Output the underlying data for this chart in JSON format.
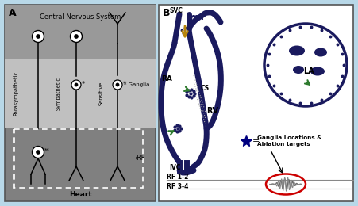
{
  "bg_color": "#b8d8e8",
  "navy": "#1a1a5e",
  "green_arrow": "#2d7a2d",
  "orange_arrow": "#b8860b",
  "red_ellipse": "#cc0000",
  "gray_dark": "#808080",
  "gray_mid": "#a8a8a8",
  "gray_light": "#c8c8c8",
  "title_a": "A",
  "title_b": "B",
  "cns_label": "Central Nervous System",
  "heart_label": "Heart",
  "para_label": "Parasympathetic",
  "symp_label": "Sympathetic",
  "sens_label": "Sensitive",
  "ganglia_label": "* Ganglia",
  "rf_label": "→RF",
  "svc_label": "SVC",
  "ra_label": "RA",
  "cs_label": "CS",
  "rv_label": "RV",
  "ivc_label": "IVC",
  "la_label": "LA",
  "ganglia_loc_line1": "Ganglia Locations &",
  "ganglia_loc_line2": "Ablation targets",
  "rf12_label": "RF 1-2",
  "rf34_label": "RF 3-4"
}
